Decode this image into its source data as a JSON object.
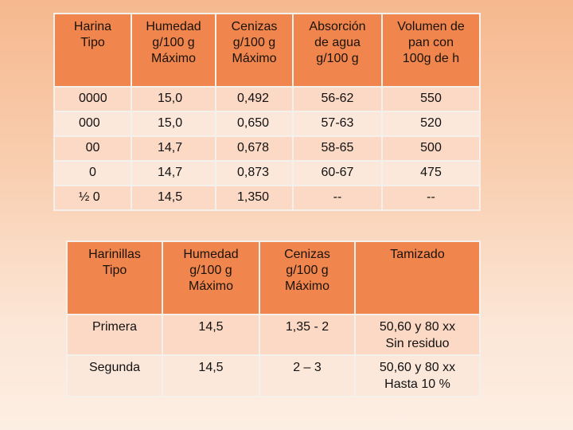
{
  "table1": {
    "headers": [
      [
        "Harina",
        "Tipo"
      ],
      [
        "Humedad",
        "g/100 g",
        "Máximo"
      ],
      [
        "Cenizas",
        "g/100 g",
        "Máximo"
      ],
      [
        "Absorción",
        "de agua",
        "g/100 g"
      ],
      [
        "Volumen de",
        "pan con",
        "100g de h"
      ]
    ],
    "rows": [
      [
        "0000",
        "15,0",
        "0,492",
        "56-62",
        "550"
      ],
      [
        "000",
        "15,0",
        "0,650",
        "57-63",
        "520"
      ],
      [
        "00",
        "14,7",
        "0,678",
        "58-65",
        "500"
      ],
      [
        "0",
        "14,7",
        "0,873",
        "60-67",
        "475"
      ],
      [
        "½ 0",
        "14,5",
        "1,350",
        "--",
        "--"
      ]
    ]
  },
  "table2": {
    "headers": [
      [
        "Harinillas",
        "Tipo"
      ],
      [
        "Humedad",
        "g/100 g",
        "Máximo"
      ],
      [
        "Cenizas",
        "g/100 g",
        "Máximo"
      ],
      [
        "Tamizado"
      ]
    ],
    "rows": [
      [
        "Primera",
        "14,5",
        "1,35 - 2",
        "50,60 y 80 xx",
        "Sin residuo"
      ],
      [
        "Segunda",
        "14,5",
        "2 – 3",
        "50,60 y 80 xx",
        "Hasta 10 %"
      ]
    ]
  }
}
